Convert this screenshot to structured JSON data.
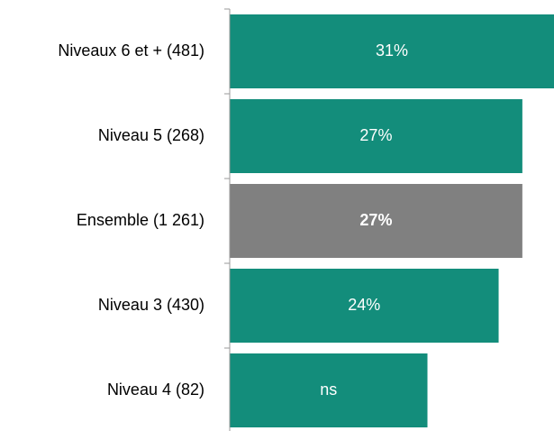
{
  "chart_data": {
    "type": "barh",
    "categories": [
      "Niveaux 6 et + (481)",
      "Niveau 5 (268)",
      "Ensemble (1 261)",
      "Niveau 3 (430)",
      "Niveau 4 (82)"
    ],
    "values": [
      31,
      27,
      27,
      24,
      15
    ],
    "value_labels": [
      "31%",
      "27%",
      "27%",
      "24%",
      "ns"
    ],
    "colors": [
      "#138d7b",
      "#138d7b",
      "#808080",
      "#138d7b",
      "#138d7b"
    ],
    "highlight": "Ensemble (1 261)",
    "xlim": [
      -10,
      31
    ]
  }
}
